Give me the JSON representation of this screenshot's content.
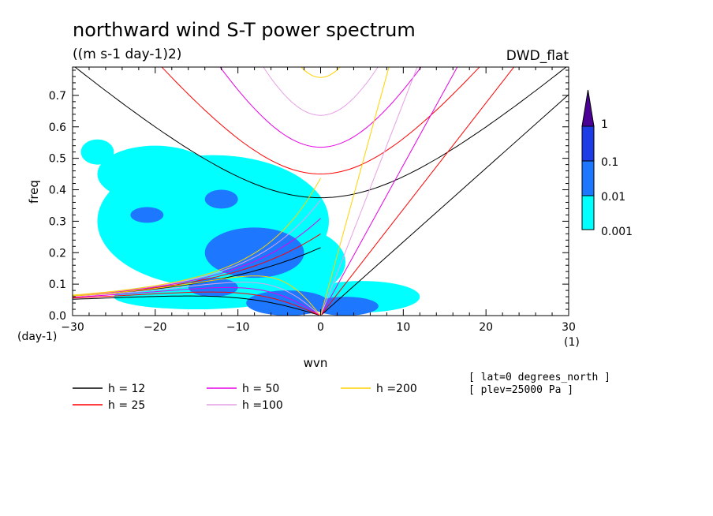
{
  "colors": {
    "level1": "#00ffff",
    "level2": "#1e78ff",
    "level3": "#1e3ce6",
    "level4": "#4b0096",
    "h12": "#000000",
    "h25": "#ff0000",
    "h50": "#e600e6",
    "h100": "#e6a0e6",
    "h200": "#ffd200"
  },
  "chart_data": {
    "type": "heatmap",
    "title": "northward wind S-T power spectrum",
    "units": "((m s-1 day-1)2)",
    "source_label": "DWD_flat",
    "xlabel": "wvn",
    "ylabel": "freq",
    "x_unit": "(1)",
    "y_unit": "(day-1)",
    "xlim": [
      -30,
      30
    ],
    "ylim": [
      0,
      0.79
    ],
    "xticks": [
      -30,
      -20,
      -10,
      0,
      10,
      20,
      30
    ],
    "xtick_labels": [
      "−30",
      "−20",
      "−10",
      "0",
      "10",
      "20",
      "30"
    ],
    "yticks": [
      0,
      0.1,
      0.2,
      0.3,
      0.4,
      0.5,
      0.6,
      0.7
    ],
    "ytick_labels": [
      "0.0",
      "0.1",
      "0.2",
      "0.3",
      "0.4",
      "0.5",
      "0.6",
      "0.7"
    ],
    "colorbar": {
      "levels": [
        "0.001",
        "0.01",
        "0.1",
        "1"
      ]
    },
    "regions": [
      {
        "level": 1,
        "cx": -13,
        "cy": 0.3,
        "rx": 14,
        "ry": 0.21
      },
      {
        "level": 1,
        "cx": -20,
        "cy": 0.45,
        "rx": 7,
        "ry": 0.09
      },
      {
        "level": 1,
        "cx": -5,
        "cy": 0.17,
        "rx": 8,
        "ry": 0.12
      },
      {
        "level": 1,
        "cx": 5,
        "cy": 0.06,
        "rx": 7,
        "ry": 0.05
      },
      {
        "level": 1,
        "cx": -15,
        "cy": 0.06,
        "rx": 10,
        "ry": 0.04
      },
      {
        "level": 1,
        "cx": -27,
        "cy": 0.52,
        "rx": 2,
        "ry": 0.04
      },
      {
        "level": 1,
        "cx": -7,
        "cy": 0.4,
        "rx": 4,
        "ry": 0.05
      },
      {
        "level": 2,
        "cx": -8,
        "cy": 0.2,
        "rx": 6,
        "ry": 0.08
      },
      {
        "level": 2,
        "cx": -4,
        "cy": 0.04,
        "rx": 5,
        "ry": 0.04
      },
      {
        "level": 2,
        "cx": -13,
        "cy": 0.09,
        "rx": 3,
        "ry": 0.03
      },
      {
        "level": 2,
        "cx": 3,
        "cy": 0.03,
        "rx": 4,
        "ry": 0.03
      },
      {
        "level": 2,
        "cx": -12,
        "cy": 0.37,
        "rx": 2,
        "ry": 0.03
      },
      {
        "level": 2,
        "cx": -21,
        "cy": 0.32,
        "rx": 2,
        "ry": 0.025
      }
    ],
    "dispersion_curves": [
      {
        "h": 12,
        "label": "h = 12",
        "color_key": "h12"
      },
      {
        "h": 25,
        "label": "h = 25",
        "color_key": "h25"
      },
      {
        "h": 50,
        "label": "h = 50",
        "color_key": "h50"
      },
      {
        "h": 100,
        "label": "h =100",
        "color_key": "h100"
      },
      {
        "h": 200,
        "label": "h =200",
        "color_key": "h200"
      }
    ],
    "annotations": [
      "[ lat=0 degrees_north ]",
      "[ plev=25000 Pa ]"
    ]
  }
}
